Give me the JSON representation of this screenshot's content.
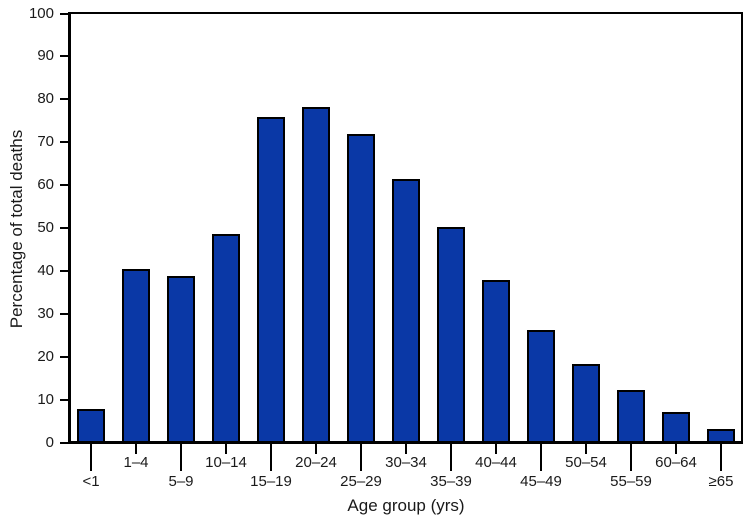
{
  "chart_data": {
    "type": "bar",
    "title": "",
    "xlabel": "Age group (yrs)",
    "ylabel": "Percentage of total deaths",
    "categories": [
      "<1",
      "1–4",
      "5–9",
      "10–14",
      "15–19",
      "20–24",
      "25–29",
      "30–34",
      "35–39",
      "40–44",
      "45–49",
      "50–54",
      "55–59",
      "60–64",
      "≥65"
    ],
    "values": [
      8.0,
      40.6,
      38.9,
      48.6,
      75.8,
      78.3,
      71.9,
      61.4,
      50.4,
      37.9,
      26.4,
      18.3,
      12.3,
      7.2,
      3.2
    ],
    "yticks": [
      0,
      10,
      20,
      30,
      40,
      50,
      60,
      70,
      80,
      90,
      100
    ],
    "ylim": [
      0,
      100
    ],
    "grid": false,
    "legend": "none",
    "frame": true,
    "stagger_x_labels": true,
    "bar_color": "#0A38A6",
    "bar_border_color": "#000000",
    "axis_color": "#000000",
    "background_color": "#ffffff"
  }
}
